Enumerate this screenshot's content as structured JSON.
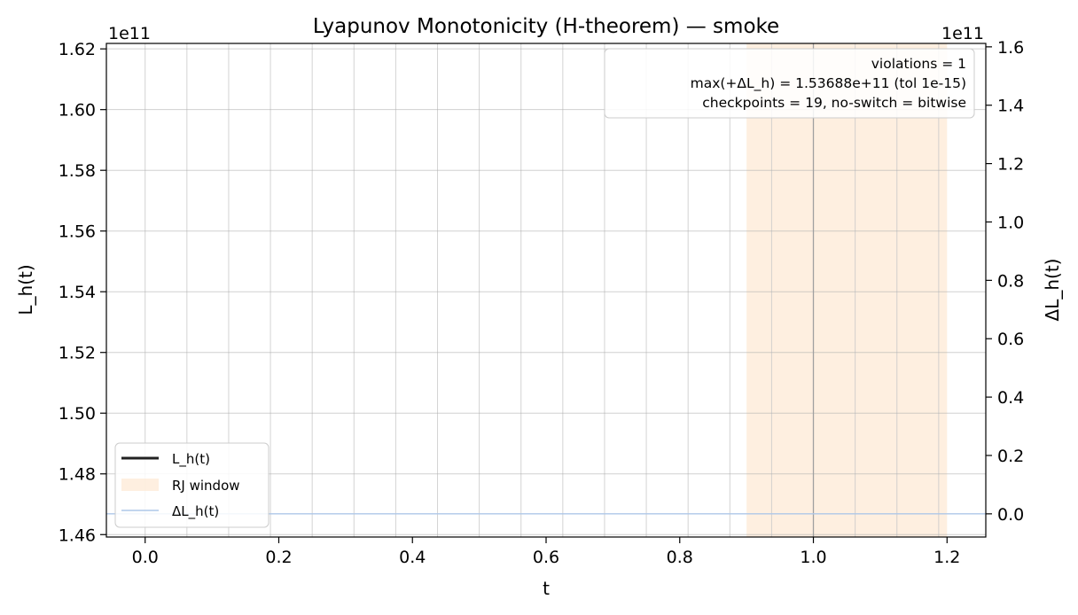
{
  "chart_data": {
    "type": "line",
    "title": "Lyapunov Monotonicity (H-theorem) — smoke",
    "xlabel": "t",
    "ylabel": "L_h(t)",
    "ylabel_right": "ΔL_h(t)",
    "y_offset_text": "1e11",
    "y2_offset_text": "1e11",
    "xlim": [
      -0.058,
      1.258
    ],
    "ylim": [
      1.4592,
      1.6218
    ],
    "y2lim": [
      -0.0794,
      1.6117
    ],
    "x_ticks": [
      0.0,
      0.2,
      0.4,
      0.6,
      0.8,
      1.0,
      1.2
    ],
    "x_tick_labels": [
      "0.0",
      "0.2",
      "0.4",
      "0.6",
      "0.8",
      "1.0",
      "1.2"
    ],
    "y_ticks": [
      1.46,
      1.48,
      1.5,
      1.52,
      1.54,
      1.56,
      1.58,
      1.6,
      1.62
    ],
    "y_tick_labels": [
      "1.46",
      "1.48",
      "1.50",
      "1.52",
      "1.54",
      "1.56",
      "1.58",
      "1.60",
      "1.62"
    ],
    "y2_ticks": [
      0.0,
      0.2,
      0.4,
      0.6,
      0.8,
      1.0,
      1.2,
      1.4,
      1.6
    ],
    "y2_tick_labels": [
      "0.0",
      "0.2",
      "0.4",
      "0.6",
      "0.8",
      "1.0",
      "1.2",
      "1.4",
      "1.6"
    ],
    "checkpoint_lines": [
      0.0,
      0.0625,
      0.125,
      0.1875,
      0.25,
      0.3125,
      0.375,
      0.4375,
      0.5,
      0.5625,
      0.625,
      0.6875,
      0.75,
      0.8125,
      0.875,
      0.9375,
      1.0625,
      1.125,
      1.1875
    ],
    "highlight_line": 1.0,
    "rj_window": [
      0.9,
      1.2
    ],
    "series": [
      {
        "name": "L_h(t)",
        "axis": "left",
        "x": [],
        "y": [],
        "color": "#222222"
      },
      {
        "name": "ΔL_h(t)",
        "axis": "right",
        "x": [
          -0.058,
          1.258
        ],
        "y": [
          0.0,
          0.0
        ],
        "color": "#aec7e8"
      }
    ],
    "legend": {
      "placement": "lower-left",
      "entries": [
        {
          "label": "L_h(t)",
          "kind": "line",
          "color": "#222222"
        },
        {
          "label": "RJ window",
          "kind": "patch",
          "color": "#fde5cc"
        },
        {
          "label": "ΔL_h(t)",
          "kind": "line",
          "color": "#aec7e8"
        }
      ]
    },
    "annotation_lines": [
      "violations = 1",
      "max(+ΔL_h) = 1.53688e+11 (tol 1e-15)",
      "checkpoints = 19, no-switch = bitwise"
    ],
    "grid": true
  }
}
